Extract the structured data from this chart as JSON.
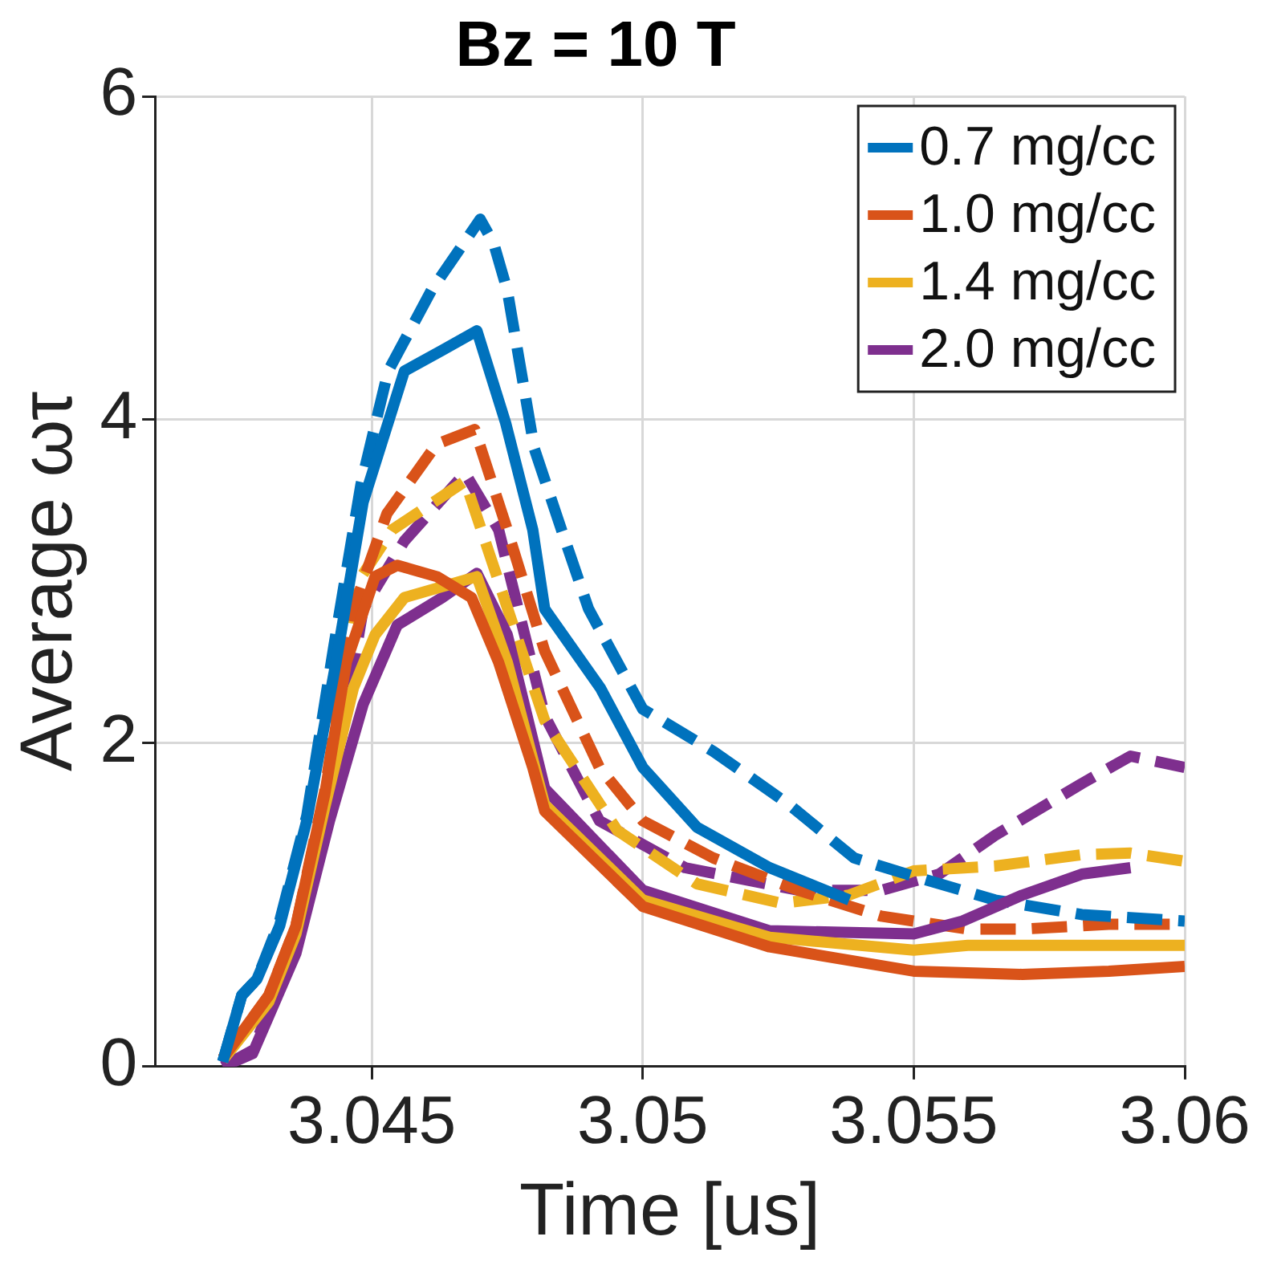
{
  "chart_data": {
    "type": "line",
    "title": "Bz = 10 T",
    "xlabel": "Time [us]",
    "ylabel": "Average ωτ",
    "xlim": [
      3.041,
      3.06
    ],
    "xticks": [
      3.045,
      3.05,
      3.055,
      3.06
    ],
    "ylim": [
      0,
      6
    ],
    "yticks": [
      0,
      2,
      4,
      6
    ],
    "grid": true,
    "legend": "top right",
    "marker": "none",
    "series": [
      {
        "name": "0.7 mg/cc",
        "color": "#0072bd",
        "line_style": "solid",
        "x": [
          3.04225,
          3.0426,
          3.04288,
          3.0433,
          3.0438,
          3.04434,
          3.04484,
          3.0456,
          3.0463,
          3.04694,
          3.04747,
          3.04797,
          3.04819,
          3.04922,
          3.05,
          3.051,
          3.05234,
          3.05381
        ],
        "values": [
          0.03,
          0.44,
          0.54,
          0.87,
          1.52,
          2.5,
          3.49,
          4.3,
          4.43,
          4.55,
          3.98,
          3.32,
          2.83,
          2.34,
          1.85,
          1.48,
          1.23,
          1.03
        ]
      },
      {
        "name": "1.0 mg/cc",
        "color": "#d95319",
        "line_style": "solid",
        "x": [
          3.04225,
          3.0431,
          3.0436,
          3.04413,
          3.04453,
          3.04506,
          3.04547,
          3.0462,
          3.04684,
          3.04734,
          3.04797,
          3.04819,
          3.05,
          3.05234,
          3.055,
          3.057,
          3.0586,
          3.06
        ],
        "values": [
          0.05,
          0.44,
          0.87,
          1.68,
          2.5,
          3.03,
          3.1,
          3.03,
          2.9,
          2.5,
          1.85,
          1.58,
          0.99,
          0.74,
          0.59,
          0.57,
          0.59,
          0.62
        ]
      },
      {
        "name": "1.4 mg/cc",
        "color": "#edb120",
        "line_style": "solid",
        "x": [
          3.04225,
          3.0431,
          3.0436,
          3.04413,
          3.04466,
          3.04506,
          3.0456,
          3.04694,
          3.0475,
          3.04819,
          3.05,
          3.05234,
          3.055,
          3.056,
          3.06
        ],
        "values": [
          0.04,
          0.4,
          0.82,
          1.6,
          2.34,
          2.67,
          2.9,
          3.03,
          2.5,
          1.62,
          1.03,
          0.8,
          0.72,
          0.75,
          0.75
        ]
      },
      {
        "name": "2.0 mg/cc",
        "color": "#7e2f8e",
        "line_style": "solid",
        "x": [
          3.04225,
          3.0428,
          3.0436,
          3.04422,
          3.04484,
          3.04547,
          3.0463,
          3.04694,
          3.0475,
          3.04819,
          3.05,
          3.05234,
          3.055,
          3.0559,
          3.057,
          3.0581,
          3.059
        ],
        "values": [
          0,
          0.08,
          0.7,
          1.52,
          2.24,
          2.73,
          2.9,
          3.05,
          2.67,
          1.72,
          1.09,
          0.84,
          0.82,
          0.9,
          1.06,
          1.19,
          1.23
        ]
      },
      {
        "color": "#0072bd",
        "line_style": "dashed",
        "x": [
          3.04225,
          3.0426,
          3.04288,
          3.0433,
          3.0438,
          3.0443,
          3.0448,
          3.0453,
          3.0461,
          3.047,
          3.04725,
          3.0475,
          3.048,
          3.0485,
          3.049,
          3.05,
          3.0513,
          3.0527,
          3.0539,
          3.05497,
          3.0565,
          3.0581,
          3.06
        ],
        "values": [
          0.03,
          0.44,
          0.54,
          0.9,
          1.55,
          2.6,
          3.6,
          4.3,
          4.8,
          5.24,
          5.09,
          4.8,
          3.82,
          3.32,
          2.83,
          2.21,
          1.95,
          1.62,
          1.29,
          1.18,
          1.03,
          0.94,
          0.9
        ]
      },
      {
        "color": "#d95319",
        "line_style": "dashed",
        "x": [
          3.04225,
          3.0431,
          3.0436,
          3.04413,
          3.04466,
          3.04528,
          3.0462,
          3.0469,
          3.0475,
          3.04819,
          3.0492,
          3.05,
          3.0513,
          3.05288,
          3.0544,
          3.056,
          3.057,
          3.0586,
          3.06
        ],
        "values": [
          0.05,
          0.44,
          0.87,
          1.7,
          2.83,
          3.42,
          3.85,
          3.94,
          3.32,
          2.57,
          1.85,
          1.52,
          1.29,
          1.09,
          0.93,
          0.85,
          0.85,
          0.88,
          0.88
        ]
      },
      {
        "color": "#edb120",
        "line_style": "dashed",
        "x": [
          3.04225,
          3.0431,
          3.0436,
          3.04413,
          3.04475,
          3.04538,
          3.04672,
          3.04734,
          3.04819,
          3.04953,
          3.051,
          3.05256,
          3.0538,
          3.055,
          3.0565,
          3.0581,
          3.059,
          3.06
        ],
        "values": [
          0.04,
          0.42,
          0.85,
          1.65,
          3.0,
          3.32,
          3.62,
          3.0,
          2.14,
          1.46,
          1.13,
          1.01,
          1.06,
          1.21,
          1.24,
          1.31,
          1.32,
          1.27
        ]
      },
      {
        "color": "#7e2f8e",
        "line_style": "dashed",
        "x": [
          3.04225,
          3.0428,
          3.0436,
          3.04422,
          3.04484,
          3.0456,
          3.04672,
          3.04734,
          3.04819,
          3.0492,
          3.05078,
          3.05288,
          3.0544,
          3.05547,
          3.0565,
          3.0581,
          3.059,
          3.06
        ],
        "values": [
          0,
          0.1,
          0.75,
          1.6,
          2.83,
          3.25,
          3.67,
          3.32,
          2.17,
          1.52,
          1.23,
          1.09,
          1.09,
          1.19,
          1.43,
          1.75,
          1.92,
          1.85
        ]
      }
    ]
  }
}
